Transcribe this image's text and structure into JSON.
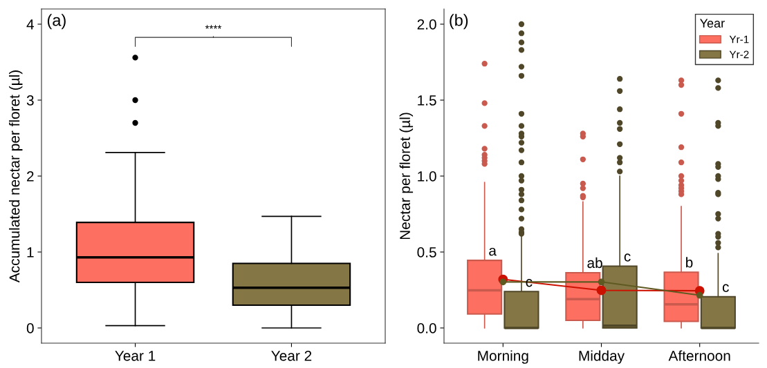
{
  "chart_data": [
    {
      "type": "box",
      "title": "(a)",
      "ylabel": "Accumulated nectar per floret (µl)",
      "categories": [
        "Year 1",
        "Year 2"
      ],
      "colors": [
        "#fd6f61",
        "#857745"
      ],
      "boxes": [
        {
          "low": 0.03,
          "q1": 0.6,
          "median": 0.93,
          "q3": 1.39,
          "high": 2.31,
          "outliers": [
            2.7,
            3.0,
            3.56
          ]
        },
        {
          "low": 0.0,
          "q1": 0.3,
          "median": 0.53,
          "q3": 0.85,
          "high": 1.47
        }
      ],
      "ylim": [
        -0.2,
        4.2
      ],
      "yticks": [
        0,
        1,
        2,
        3,
        4
      ],
      "grid": false,
      "legend": false,
      "annotations": [
        "****"
      ]
    },
    {
      "type": "box",
      "title": "(b)",
      "ylabel": "Nectar per floret (µl)",
      "categories": [
        "Morning",
        "Midday",
        "Afternoon"
      ],
      "legend_title": "Year",
      "legend": "top right",
      "grid": false,
      "series": [
        {
          "name": "Yr-1",
          "color": "#fd6f61",
          "boxes": [
            {
              "low": 0.0,
              "q1": 0.092,
              "median": 0.248,
              "q3": 0.445,
              "high": 0.958,
              "outliers": [
                1.74,
                1.48,
                1.33,
                1.18,
                1.14,
                1.12,
                1.1,
                1.08
              ]
            },
            {
              "low": 0.0,
              "q1": 0.05,
              "median": 0.19,
              "q3": 0.364,
              "high": 0.83,
              "outliers": [
                1.28,
                1.26,
                1.11,
                0.95,
                0.92,
                0.87,
                0.86
              ]
            },
            {
              "low": 0.0,
              "q1": 0.043,
              "median": 0.156,
              "q3": 0.367,
              "high": 0.8,
              "outliers": [
                1.63,
                1.6,
                1.41,
                1.19,
                1.09,
                1.0,
                0.97,
                0.94,
                0.92,
                0.9,
                0.88
              ]
            }
          ]
        },
        {
          "name": "Yr-2",
          "color": "#857745",
          "boxes": [
            {
              "low": 0.0,
              "q1": 0.0,
              "median": 0.0,
              "q3": 0.24,
              "high": 0.61,
              "outliers": [
                2.0,
                1.94,
                1.88,
                1.83,
                1.72,
                1.66,
                1.41,
                1.33,
                1.28,
                1.26,
                1.22,
                1.17,
                1.09,
                1.0,
                0.97,
                0.91,
                0.88,
                0.84,
                0.78,
                0.72,
                0.65,
                0.63,
                0.62
              ]
            },
            {
              "low": 0.0,
              "q1": 0.0,
              "median": 0.015,
              "q3": 0.407,
              "high": 1.0,
              "outliers": [
                1.64,
                1.56,
                1.44,
                1.35,
                1.31,
                1.21,
                1.12,
                1.09,
                1.03
              ]
            },
            {
              "low": 0.0,
              "q1": 0.0,
              "median": 0.0,
              "q3": 0.206,
              "high": 0.49,
              "outliers": [
                1.63,
                1.58,
                1.35,
                1.33,
                1.08,
                1.06,
                1.0,
                0.98,
                0.89,
                0.88,
                0.75,
                0.72,
                0.62,
                0.6,
                0.56,
                0.53
              ]
            }
          ]
        },
        {
          "type": "line",
          "color": "#cc1100",
          "marker": "circle",
          "values": [
            0.32,
            0.248,
            0.245
          ]
        },
        {
          "type": "line",
          "color": "#5e5a22",
          "marker": "circle",
          "values": [
            0.303,
            0.303,
            0.215
          ]
        }
      ],
      "annotations": [
        "a",
        "c",
        "ab",
        "c",
        "b",
        "c"
      ],
      "ylim": [
        -0.1,
        2.1
      ],
      "yticks": [
        {
          "value": 0,
          "label": "0.0"
        },
        {
          "value": 0.5,
          "label": "0.5"
        },
        {
          "value": 1,
          "label": "1.0"
        },
        {
          "value": 1.5,
          "label": "1.5"
        },
        {
          "value": 2,
          "label": "2.0"
        }
      ]
    }
  ]
}
